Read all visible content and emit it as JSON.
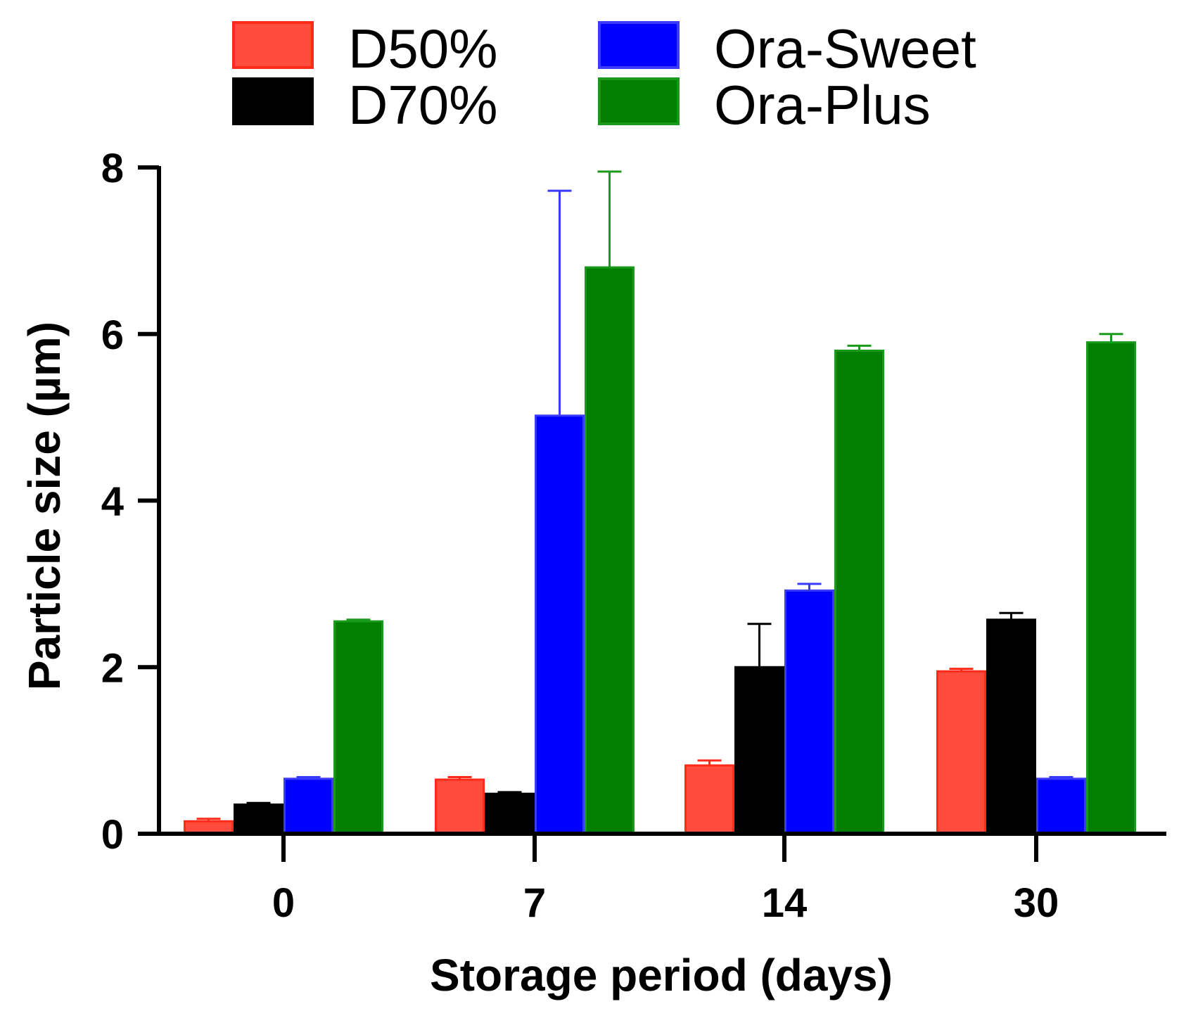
{
  "chart_data": {
    "type": "bar",
    "title": "",
    "xlabel": "Storage period (days)",
    "ylabel": "Particle size (µm)",
    "categories": [
      "0",
      "7",
      "14",
      "30"
    ],
    "ylim": [
      0,
      8
    ],
    "yticks": [
      0,
      2,
      4,
      6,
      8
    ],
    "grid": false,
    "legend_position": "top",
    "series": [
      {
        "name": "D50%",
        "color": "#ff4c3c",
        "edge_color": "#ff2a1a",
        "values": [
          0.15,
          0.65,
          0.82,
          1.95
        ],
        "errors": [
          0.03,
          0.03,
          0.06,
          0.03
        ]
      },
      {
        "name": "D70%",
        "color": "#000000",
        "edge_color": "#000000",
        "values": [
          0.35,
          0.48,
          2.0,
          2.57
        ],
        "errors": [
          0.02,
          0.02,
          0.52,
          0.08
        ]
      },
      {
        "name": "Ora-Sweet",
        "color": "#0000ff",
        "edge_color": "#3a3aff",
        "values": [
          0.66,
          5.02,
          2.92,
          0.66
        ],
        "errors": [
          0.02,
          2.7,
          0.08,
          0.02
        ]
      },
      {
        "name": "Ora-Plus",
        "color": "#007f00",
        "edge_color": "#1a9a1a",
        "values": [
          2.55,
          6.8,
          5.8,
          5.9
        ],
        "errors": [
          0.02,
          1.15,
          0.06,
          0.1
        ]
      }
    ]
  }
}
